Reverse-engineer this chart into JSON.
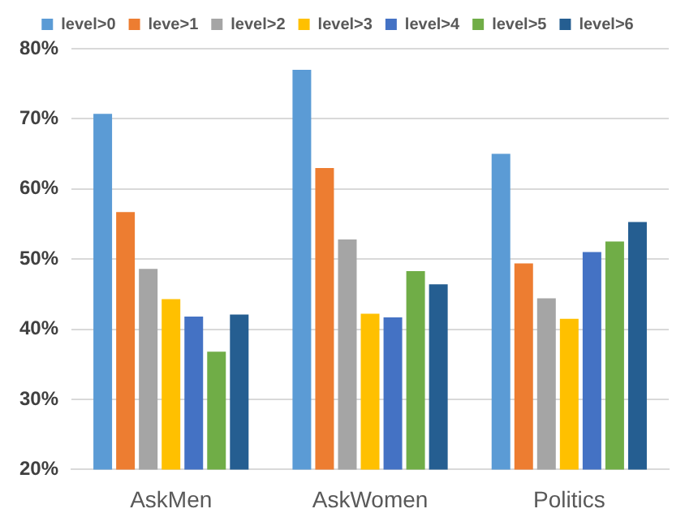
{
  "chart_data": {
    "type": "bar",
    "categories": [
      "AskMen",
      "AskWomen",
      "Politics"
    ],
    "series": [
      {
        "name": "level>0",
        "color": "#5b9bd5",
        "values": [
          70.7,
          77,
          65
        ]
      },
      {
        "name": "leve>1",
        "color": "#ed7d31",
        "values": [
          56.7,
          63,
          49.4
        ]
      },
      {
        "name": "level>2",
        "color": "#a5a5a5",
        "values": [
          48.6,
          52.8,
          44.4
        ]
      },
      {
        "name": "level>3",
        "color": "#ffc000",
        "values": [
          44.3,
          42.2,
          41.5
        ]
      },
      {
        "name": "level>4",
        "color": "#4472c4",
        "values": [
          41.8,
          41.7,
          51
        ]
      },
      {
        "name": "level>5",
        "color": "#70ad47",
        "values": [
          36.8,
          48.3,
          52.5
        ]
      },
      {
        "name": "level>6",
        "color": "#255e91",
        "values": [
          42.1,
          46.4,
          55.3
        ]
      }
    ],
    "ylim": [
      20,
      80
    ],
    "yticks": [
      {
        "value": 20,
        "label": "20%"
      },
      {
        "value": 30,
        "label": "30%"
      },
      {
        "value": 40,
        "label": "40%"
      },
      {
        "value": 50,
        "label": "50%"
      },
      {
        "value": 60,
        "label": "60%"
      },
      {
        "value": 70,
        "label": "70%"
      },
      {
        "value": 80,
        "label": "80%"
      }
    ],
    "grid": "y",
    "legend": "top"
  }
}
